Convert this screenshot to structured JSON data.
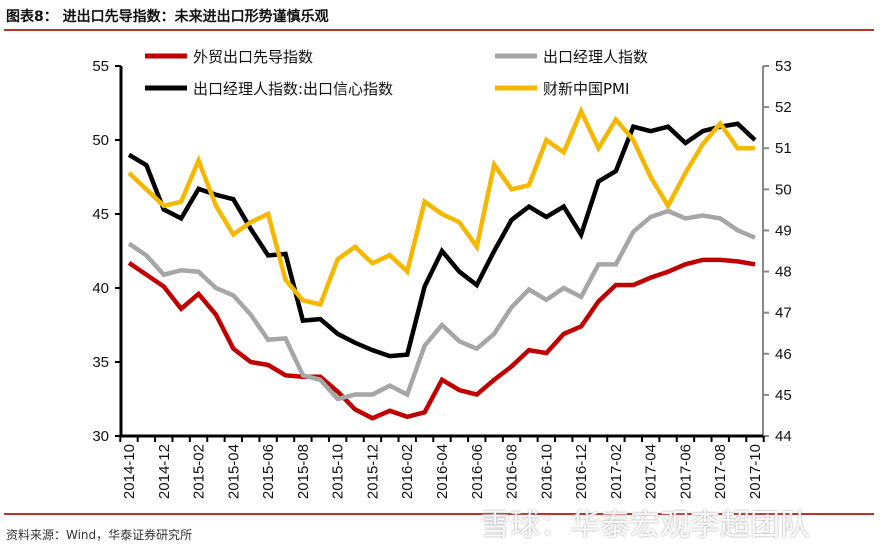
{
  "title": "图表8：  进出口先导指数：未来进出口形势谨慎乐观",
  "source": "资料来源：Wind，华泰证券研究所",
  "watermark": "雪球：华泰宏观李超团队",
  "chart_data": {
    "type": "line",
    "x": [
      "2014-10",
      "2014-11",
      "2014-12",
      "2015-01",
      "2015-02",
      "2015-03",
      "2015-04",
      "2015-05",
      "2015-06",
      "2015-07",
      "2015-08",
      "2015-09",
      "2015-10",
      "2015-11",
      "2015-12",
      "2016-01",
      "2016-02",
      "2016-03",
      "2016-04",
      "2016-05",
      "2016-06",
      "2016-07",
      "2016-08",
      "2016-09",
      "2016-10",
      "2016-11",
      "2016-12",
      "2017-01",
      "2017-02",
      "2017-03",
      "2017-04",
      "2017-05",
      "2017-06",
      "2017-07",
      "2017-08",
      "2017-09",
      "2017-10"
    ],
    "xtick_labels": [
      "2014-10",
      "2014-12",
      "2015-02",
      "2015-04",
      "2015-06",
      "2015-08",
      "2015-10",
      "2015-12",
      "2016-02",
      "2016-04",
      "2016-06",
      "2016-08",
      "2016-10",
      "2016-12",
      "2017-02",
      "2017-04",
      "2017-06",
      "2017-08",
      "2017-10"
    ],
    "y_left": {
      "range": [
        30,
        55
      ],
      "ticks": [
        30,
        35,
        40,
        45,
        50,
        55
      ]
    },
    "y_right": {
      "range": [
        44,
        53
      ],
      "ticks": [
        44,
        45,
        46,
        47,
        48,
        49,
        50,
        51,
        52,
        53
      ]
    },
    "grid": false,
    "legend_placement": "top",
    "series": [
      {
        "name": "外贸出口先导指数",
        "color": "#c00000",
        "axis": "left",
        "values": [
          41.7,
          40.9,
          40.1,
          38.6,
          39.6,
          38.2,
          35.9,
          35.0,
          34.8,
          34.1,
          34.0,
          34.0,
          33.0,
          31.8,
          31.2,
          31.7,
          31.3,
          31.6,
          33.8,
          33.1,
          32.8,
          33.8,
          34.7,
          35.8,
          35.6,
          36.9,
          37.4,
          39.1,
          40.2,
          40.2,
          40.7,
          41.1,
          41.6,
          41.9,
          41.9,
          41.8,
          41.6
        ]
      },
      {
        "name": "出口经理人指数",
        "color": "#a6a6a6",
        "axis": "left",
        "values": [
          43.0,
          42.2,
          40.9,
          41.2,
          41.1,
          40.0,
          39.5,
          38.2,
          36.5,
          36.6,
          34.1,
          33.8,
          32.5,
          32.8,
          32.8,
          33.4,
          32.8,
          36.1,
          37.5,
          36.4,
          35.9,
          36.9,
          38.7,
          39.9,
          39.2,
          40.0,
          39.4,
          41.6,
          41.6,
          43.8,
          44.8,
          45.2,
          44.7,
          44.9,
          44.7,
          43.9,
          43.4
        ]
      },
      {
        "name": "出口经理人指数:出口信心指数",
        "color": "#000000",
        "axis": "left",
        "values": [
          49.0,
          48.3,
          45.3,
          44.7,
          46.7,
          46.3,
          46.0,
          44.0,
          42.2,
          42.3,
          37.8,
          37.9,
          36.9,
          36.3,
          35.8,
          35.4,
          35.5,
          40.1,
          42.5,
          41.1,
          40.2,
          42.5,
          44.6,
          45.5,
          44.8,
          45.5,
          43.6,
          47.2,
          47.9,
          50.9,
          50.6,
          50.9,
          49.8,
          50.6,
          50.9,
          51.1,
          50.0
        ]
      },
      {
        "name": "财新中国PMI",
        "color": "#f5b800",
        "axis": "right",
        "values": [
          50.4,
          50.0,
          49.6,
          49.7,
          50.7,
          49.6,
          48.9,
          49.2,
          49.4,
          47.8,
          47.3,
          47.2,
          48.3,
          48.6,
          48.2,
          48.4,
          48.0,
          49.7,
          49.4,
          49.2,
          48.6,
          50.6,
          50.0,
          50.1,
          51.2,
          50.9,
          51.9,
          51.0,
          51.7,
          51.2,
          50.3,
          49.6,
          50.4,
          51.1,
          51.6,
          51.0,
          51.0
        ]
      }
    ]
  }
}
